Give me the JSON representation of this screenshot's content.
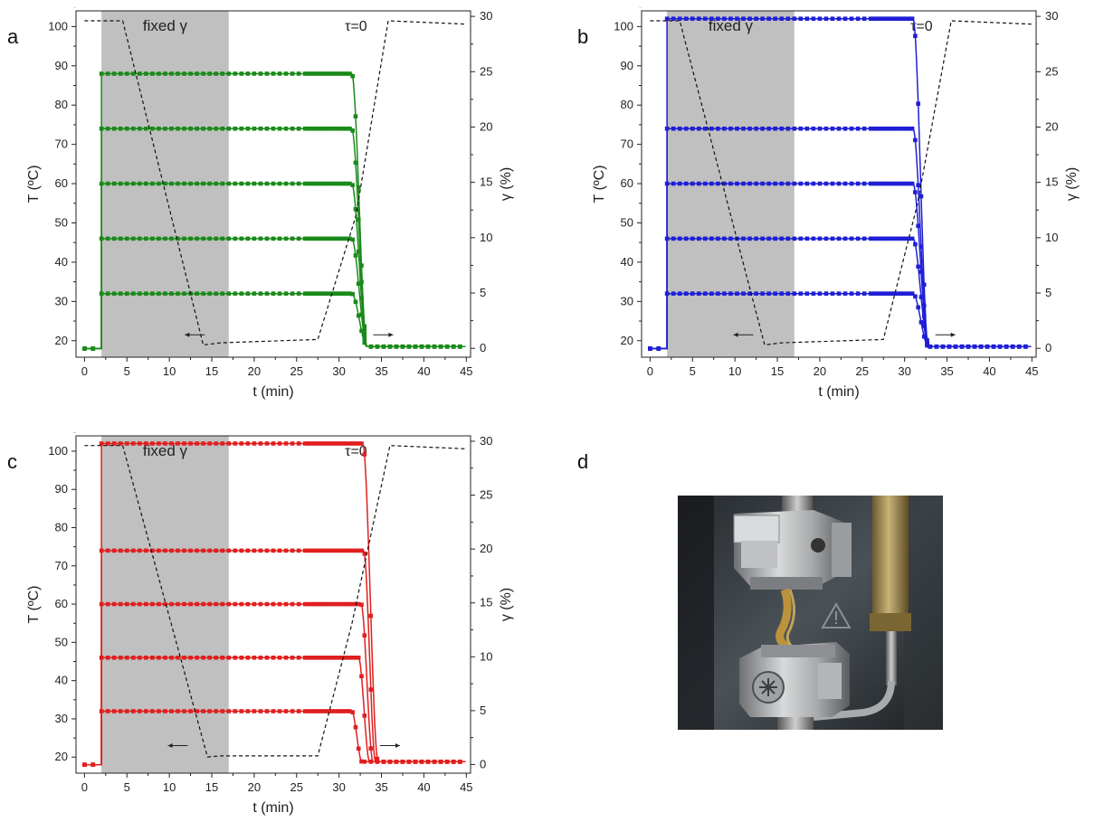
{
  "figure": {
    "panel_labels": [
      "a",
      "b",
      "c",
      "d"
    ]
  },
  "chart_data": [
    {
      "type": "line",
      "panel": "a",
      "color": "#1a8a1a",
      "marker": "square",
      "xlabel": "t (min)",
      "ylabel_left": "T (ºC)",
      "ylabel_right": "γ (%)",
      "xlim": [
        -1,
        45.5
      ],
      "ylim_left": [
        15.8,
        104
      ],
      "ylim_right": [
        -0.8,
        30.5
      ],
      "xticks": [
        0,
        5,
        10,
        15,
        20,
        25,
        30,
        35,
        40,
        45
      ],
      "yticks_left": [
        20,
        30,
        40,
        50,
        60,
        70,
        80,
        90,
        100
      ],
      "yticks_right": [
        0,
        5,
        10,
        15,
        20,
        25,
        30
      ],
      "shaded_region": {
        "x": [
          2,
          17
        ],
        "label": "fixed γ",
        "color": "#c0c0c0"
      },
      "annotation": "τ=0",
      "temperature_series": [
        {
          "level": 32,
          "drop_start": 31.5,
          "drop_end": 33.3
        },
        {
          "level": 46,
          "drop_start": 31.5,
          "drop_end": 33.3
        },
        {
          "level": 60,
          "drop_start": 31.5,
          "drop_end": 33.3
        },
        {
          "level": 74,
          "drop_start": 31.5,
          "drop_end": 33.3
        },
        {
          "level": 88,
          "drop_start": 31.5,
          "drop_end": 33.3
        }
      ],
      "baseline": 18,
      "baseline_final": 18.5,
      "strain_curve": {
        "axis": "right",
        "style": "dashed",
        "x": [
          0,
          4.5,
          14,
          16,
          27.5,
          32,
          35.8,
          45
        ],
        "y": [
          29.6,
          29.6,
          0.3,
          0.5,
          0.8,
          12,
          29.6,
          29.3
        ]
      },
      "arrows": [
        {
          "x": 13,
          "y_left": 21.5,
          "direction": "left"
        },
        {
          "x": 35.2,
          "y_left": 21.5,
          "direction": "right"
        }
      ]
    },
    {
      "type": "line",
      "panel": "b",
      "color": "#1f1fd6",
      "marker": "square",
      "xlabel": "t (min)",
      "ylabel_left": "T (ºC)",
      "ylabel_right": "γ (%)",
      "xlim": [
        -1,
        45.5
      ],
      "ylim_left": [
        15.8,
        104
      ],
      "ylim_right": [
        -0.8,
        30.5
      ],
      "xticks": [
        0,
        5,
        10,
        15,
        20,
        25,
        30,
        35,
        40,
        45
      ],
      "yticks_left": [
        20,
        30,
        40,
        50,
        60,
        70,
        80,
        90,
        100
      ],
      "yticks_right": [
        0,
        5,
        10,
        15,
        20,
        25,
        30
      ],
      "shaded_region": {
        "x": [
          2,
          17
        ],
        "label": "fixed γ",
        "color": "#c0c0c0"
      },
      "annotation": "τ=0",
      "temperature_series": [
        {
          "level": 32,
          "drop_start": 31.0,
          "drop_end": 32.8
        },
        {
          "level": 46,
          "drop_start": 31.0,
          "drop_end": 32.8
        },
        {
          "level": 60,
          "drop_start": 31.0,
          "drop_end": 32.8
        },
        {
          "level": 74,
          "drop_start": 31.0,
          "drop_end": 32.8
        },
        {
          "level": 102,
          "drop_start": 31.0,
          "drop_end": 32.8
        }
      ],
      "baseline": 18,
      "baseline_final": 18.5,
      "strain_curve": {
        "axis": "right",
        "style": "dashed",
        "x": [
          0,
          3.5,
          13.5,
          15.5,
          27.5,
          31.5,
          35.5,
          45
        ],
        "y": [
          29.6,
          29.6,
          0.3,
          0.5,
          0.8,
          13,
          29.6,
          29.3
        ]
      },
      "arrows": [
        {
          "x": 11,
          "y_left": 21.5,
          "direction": "left"
        },
        {
          "x": 34.8,
          "y_left": 21.5,
          "direction": "right"
        }
      ]
    },
    {
      "type": "line",
      "panel": "c",
      "color": "#e01f1f",
      "marker": "square",
      "xlabel": "t (min)",
      "ylabel_left": "T (ºC)",
      "ylabel_right": "γ (%)",
      "xlim": [
        -1,
        45.5
      ],
      "ylim_left": [
        15.8,
        104
      ],
      "ylim_right": [
        -0.8,
        30.5
      ],
      "xticks": [
        0,
        5,
        10,
        15,
        20,
        25,
        30,
        35,
        40,
        45
      ],
      "yticks_left": [
        20,
        30,
        40,
        50,
        60,
        70,
        80,
        90,
        100
      ],
      "yticks_right": [
        0,
        5,
        10,
        15,
        20,
        25,
        30
      ],
      "shaded_region": {
        "x": [
          2,
          17
        ],
        "label": "fixed γ",
        "color": "#c0c0c0"
      },
      "annotation": "τ=0",
      "temperature_series": [
        {
          "level": 32,
          "drop_start": 31.5,
          "drop_end": 32.7
        },
        {
          "level": 46,
          "drop_start": 32.3,
          "drop_end": 33.6
        },
        {
          "level": 60,
          "drop_start": 32.6,
          "drop_end": 34.0
        },
        {
          "level": 74,
          "drop_start": 32.9,
          "drop_end": 34.3
        },
        {
          "level": 102,
          "drop_start": 32.8,
          "drop_end": 34.6
        }
      ],
      "baseline": 18,
      "baseline_final": 18.8,
      "strain_curve": {
        "axis": "right",
        "style": "dashed",
        "x": [
          0,
          4.5,
          14.5,
          16,
          27.5,
          31.5,
          36,
          45
        ],
        "y": [
          29.6,
          29.6,
          0.7,
          0.8,
          0.8,
          13,
          29.6,
          29.3
        ]
      },
      "arrows": [
        {
          "x": 11,
          "y_left": 23,
          "direction": "left"
        },
        {
          "x": 36,
          "y_left": 23,
          "direction": "right"
        }
      ]
    }
  ],
  "photo": {
    "description_icon": "warning-triangle-icon"
  }
}
